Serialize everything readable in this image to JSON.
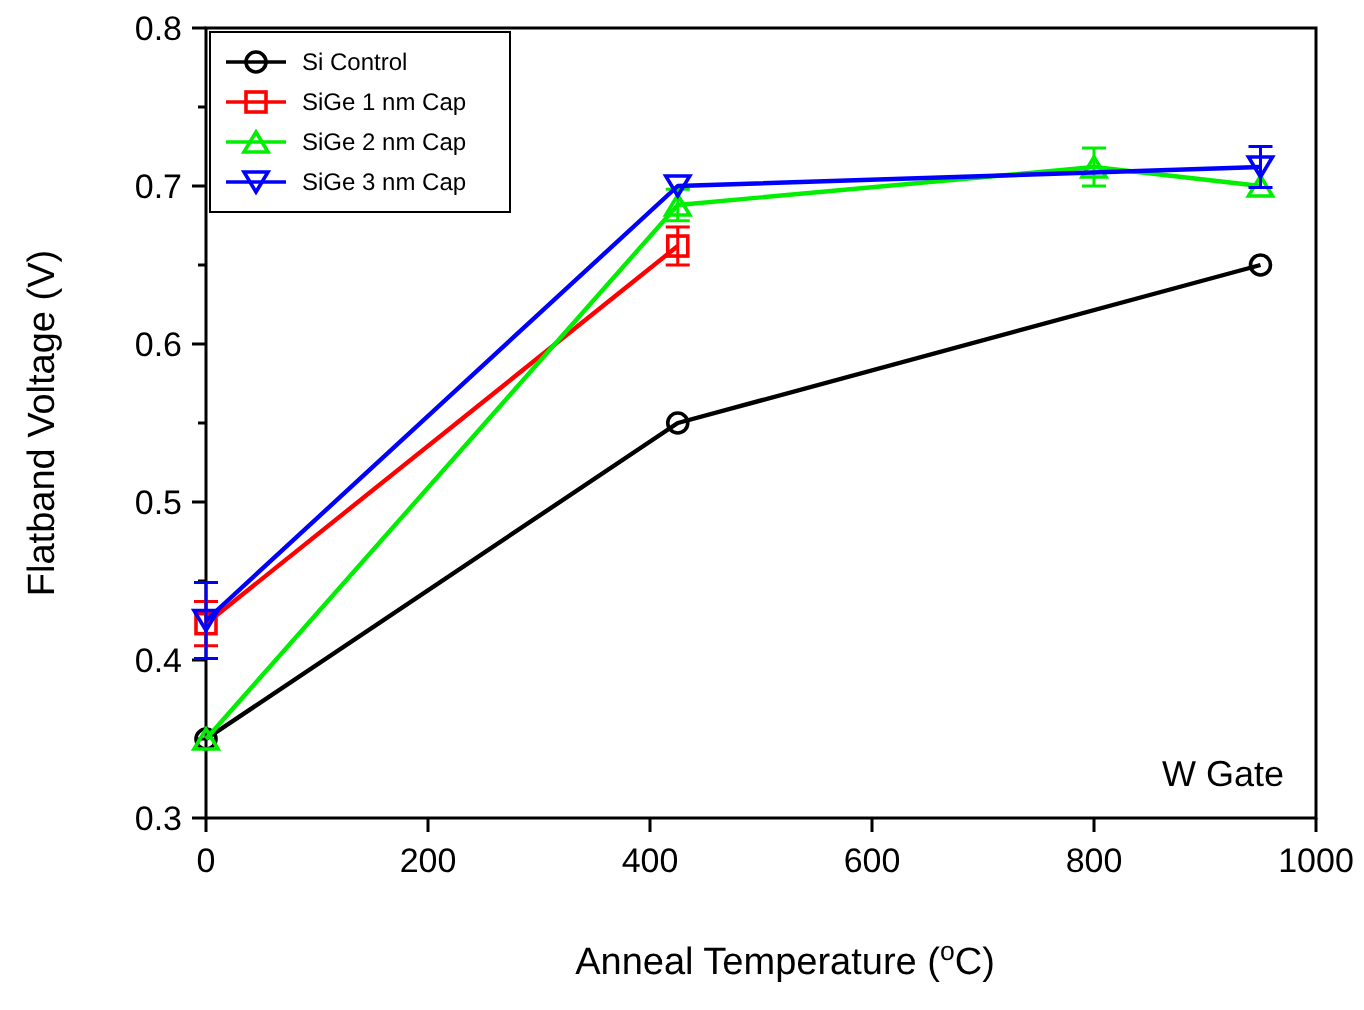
{
  "chart_data": {
    "type": "line",
    "xlabel": "Anneal Temperature ($^{o}$C)",
    "ylabel": "Flatband Voltage (V)",
    "xlim": [
      0,
      1000
    ],
    "xticks": [
      0,
      200,
      400,
      600,
      800,
      1000
    ],
    "ylim": [
      0.3,
      0.8
    ],
    "yticks": [
      0.3,
      {
        "value": 0.35,
        "label": null
      },
      0.4,
      {
        "value": 0.45,
        "label": null
      },
      0.5,
      {
        "value": 0.55,
        "label": null
      },
      0.6,
      {
        "value": 0.65,
        "label": null
      },
      0.7,
      {
        "value": 0.75,
        "label": null
      },
      0.8
    ],
    "grid": false,
    "legend": "top left",
    "annotations": [
      "W Gate"
    ],
    "series": [
      {
        "name": "Si Control",
        "color": "#000000",
        "marker": "circle",
        "x": [
          0,
          425,
          950
        ],
        "values": [
          0.35,
          0.55,
          0.65
        ]
      },
      {
        "name": "SiGe 1 nm Cap",
        "color": "#ff0000",
        "marker": "square",
        "x": [
          0,
          425
        ],
        "values": [
          0.423,
          0.662
        ],
        "errors": [
          0.014,
          0.012
        ]
      },
      {
        "name": "SiGe 2 nm Cap",
        "color": "#00ee00",
        "marker": "triangle",
        "x": [
          0,
          425,
          800,
          950
        ],
        "values": [
          0.35,
          0.688,
          0.712,
          0.7
        ],
        "errors": [
          null,
          0.01,
          0.012,
          null
        ]
      },
      {
        "name": "SiGe 3 nm Cap",
        "color": "#0000ff",
        "marker": "triangle-down",
        "x": [
          0,
          425,
          950
        ],
        "values": [
          0.425,
          0.7,
          0.712
        ],
        "errors": [
          0.024,
          null,
          0.013
        ]
      }
    ]
  }
}
